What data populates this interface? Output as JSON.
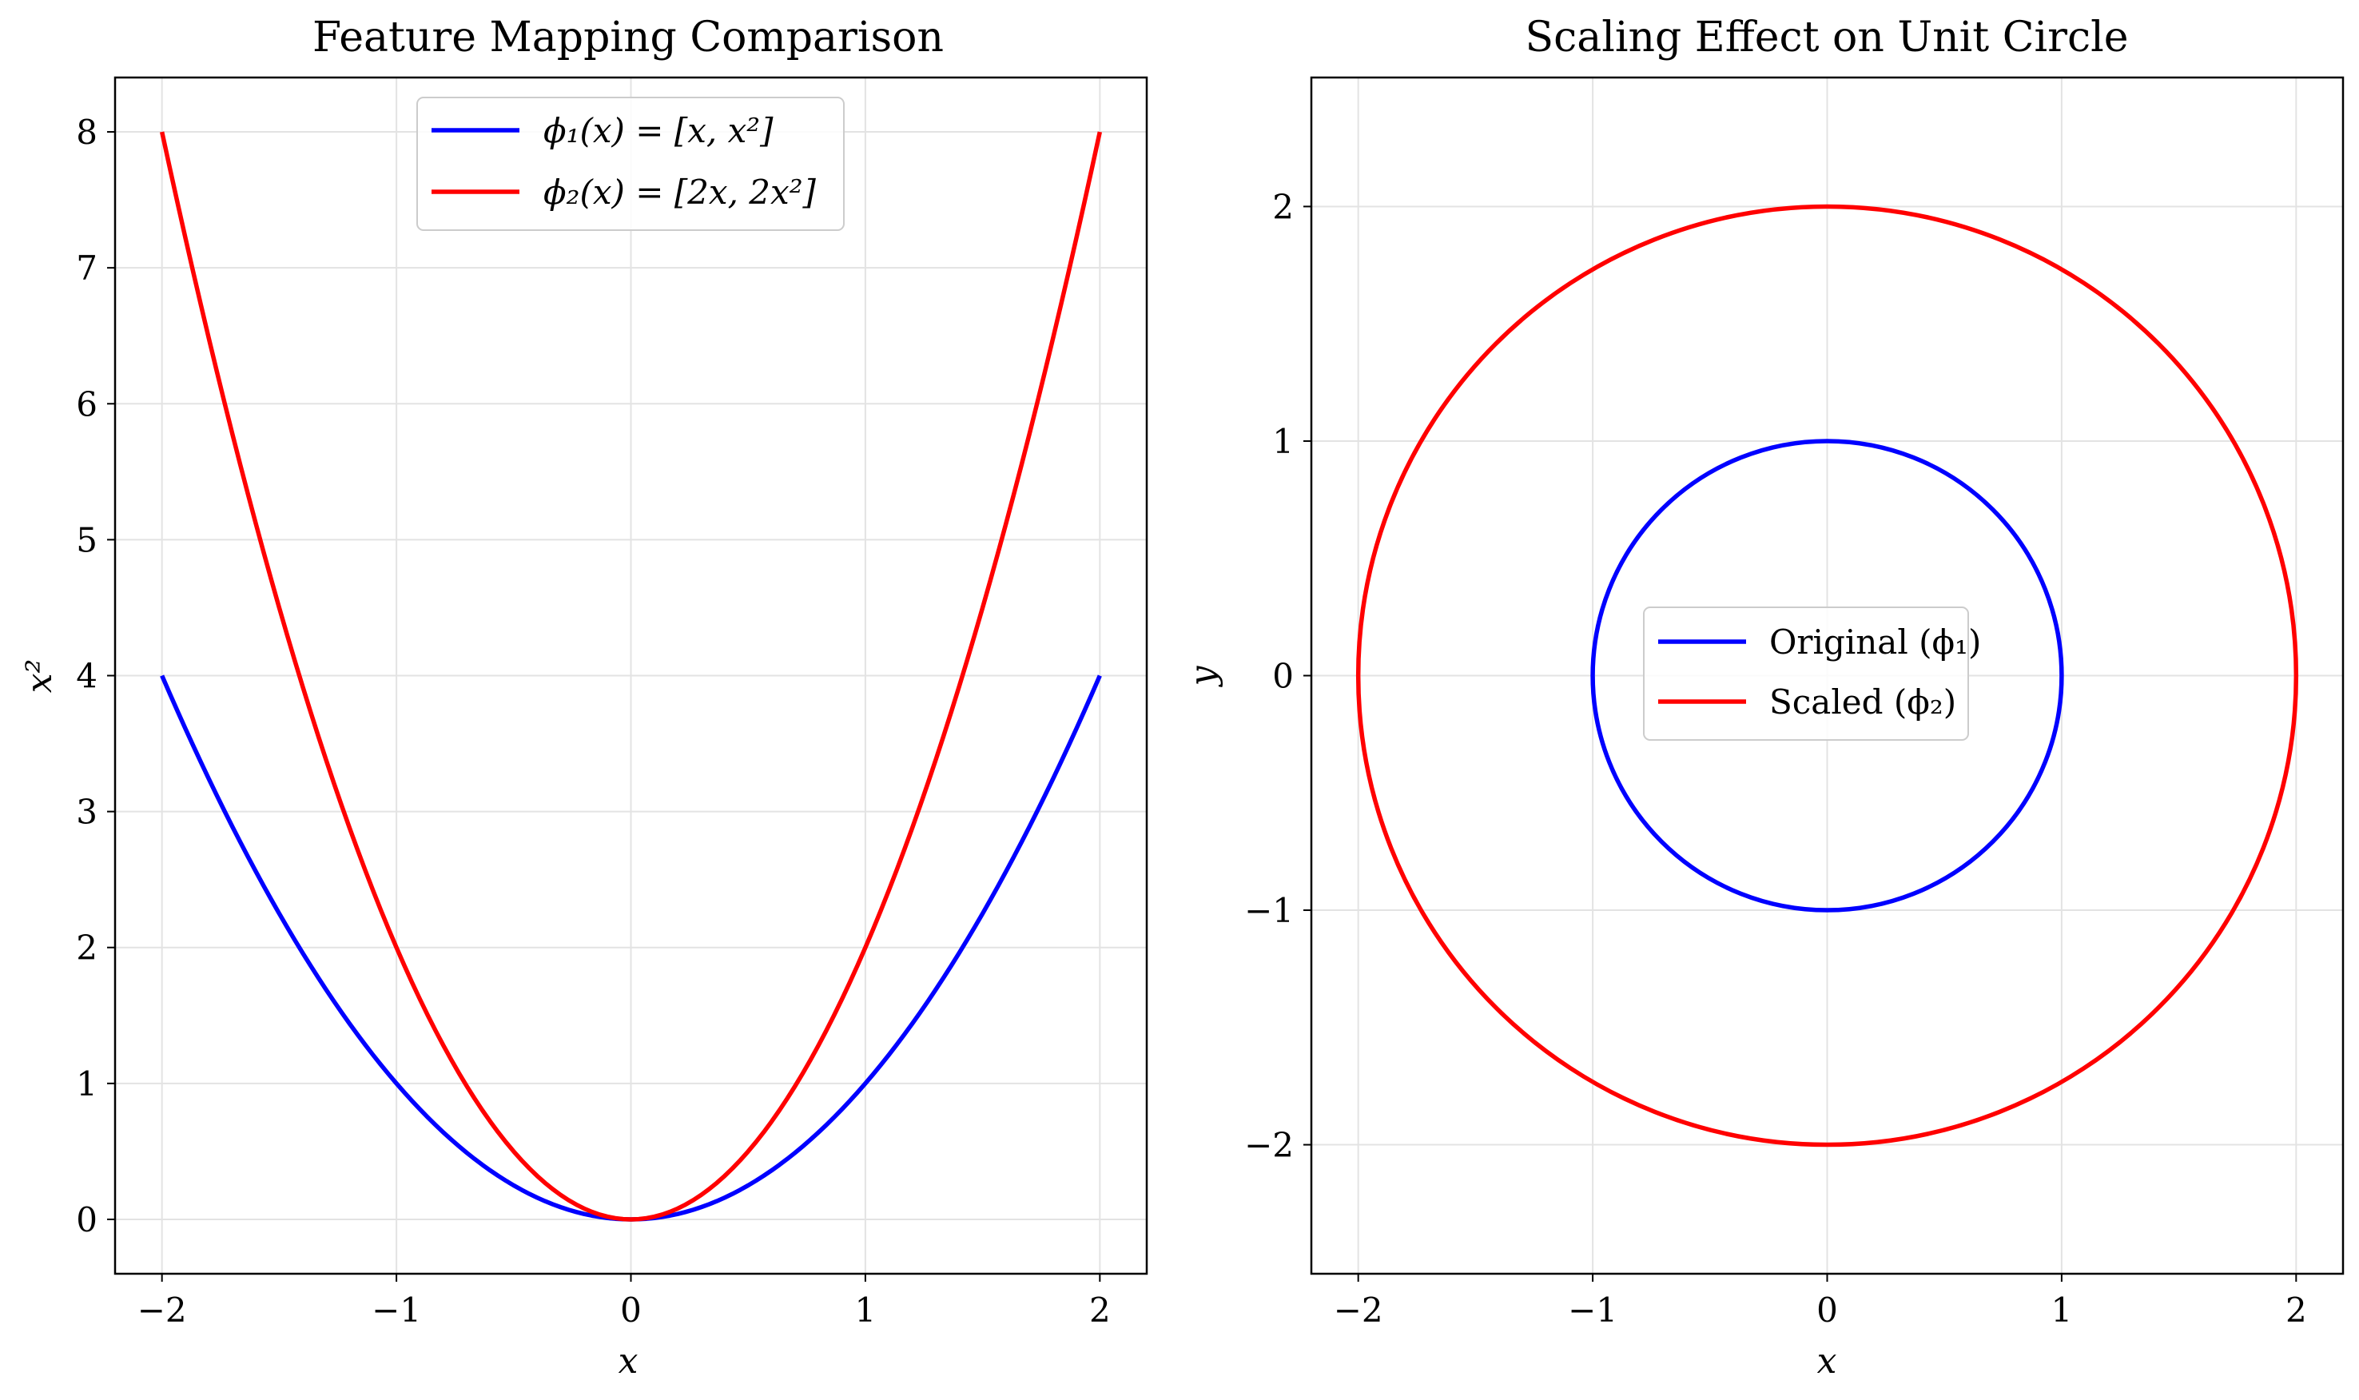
{
  "chart_data": [
    {
      "type": "line",
      "title": "Feature Mapping Comparison",
      "xlabel": "x",
      "ylabel": "x²",
      "xlim": [
        -2.2,
        2.2
      ],
      "ylim": [
        -0.4,
        8.4
      ],
      "xticks": [
        -2,
        -1,
        0,
        1,
        2
      ],
      "xtick_labels": [
        "−2",
        "−1",
        "0",
        "1",
        "2"
      ],
      "yticks": [
        0,
        1,
        2,
        3,
        4,
        5,
        6,
        7,
        8
      ],
      "ytick_labels": [
        "0",
        "1",
        "2",
        "3",
        "4",
        "5",
        "6",
        "7",
        "8"
      ],
      "grid": true,
      "legend_position": "upper center",
      "x": [
        -2.0,
        -1.5,
        -1.0,
        -0.5,
        0.0,
        0.5,
        1.0,
        1.5,
        2.0
      ],
      "series": [
        {
          "name": "ϕ₁(x) = [x, x²]",
          "color": "#0000ff",
          "values": [
            4.0,
            2.25,
            1.0,
            0.25,
            0.0,
            0.25,
            1.0,
            2.25,
            4.0
          ]
        },
        {
          "name": "ϕ₂(x) = [2x, 2x²]",
          "color": "#ff0000",
          "values": [
            8.0,
            4.5,
            2.0,
            0.5,
            0.0,
            0.5,
            2.0,
            4.5,
            8.0
          ]
        }
      ]
    },
    {
      "type": "line",
      "title": "Scaling Effect on Unit Circle",
      "xlabel": "x",
      "ylabel": "y",
      "xlim": [
        -2.2,
        2.2
      ],
      "ylim": [
        -2.55,
        2.55
      ],
      "xticks": [
        -2,
        -1,
        0,
        1,
        2
      ],
      "xtick_labels": [
        "−2",
        "−1",
        "0",
        "1",
        "2"
      ],
      "yticks": [
        -2,
        -1,
        0,
        1,
        2
      ],
      "ytick_labels": [
        "−2",
        "−1",
        "0",
        "1",
        "2"
      ],
      "grid": true,
      "legend_position": "center",
      "series": [
        {
          "name": "Original (ϕ₁)",
          "color": "#0000ff",
          "center": [
            0,
            0
          ],
          "radius": 1
        },
        {
          "name": "Scaled (ϕ₂)",
          "color": "#ff0000",
          "center": [
            0,
            0
          ],
          "radius": 2
        }
      ]
    }
  ]
}
